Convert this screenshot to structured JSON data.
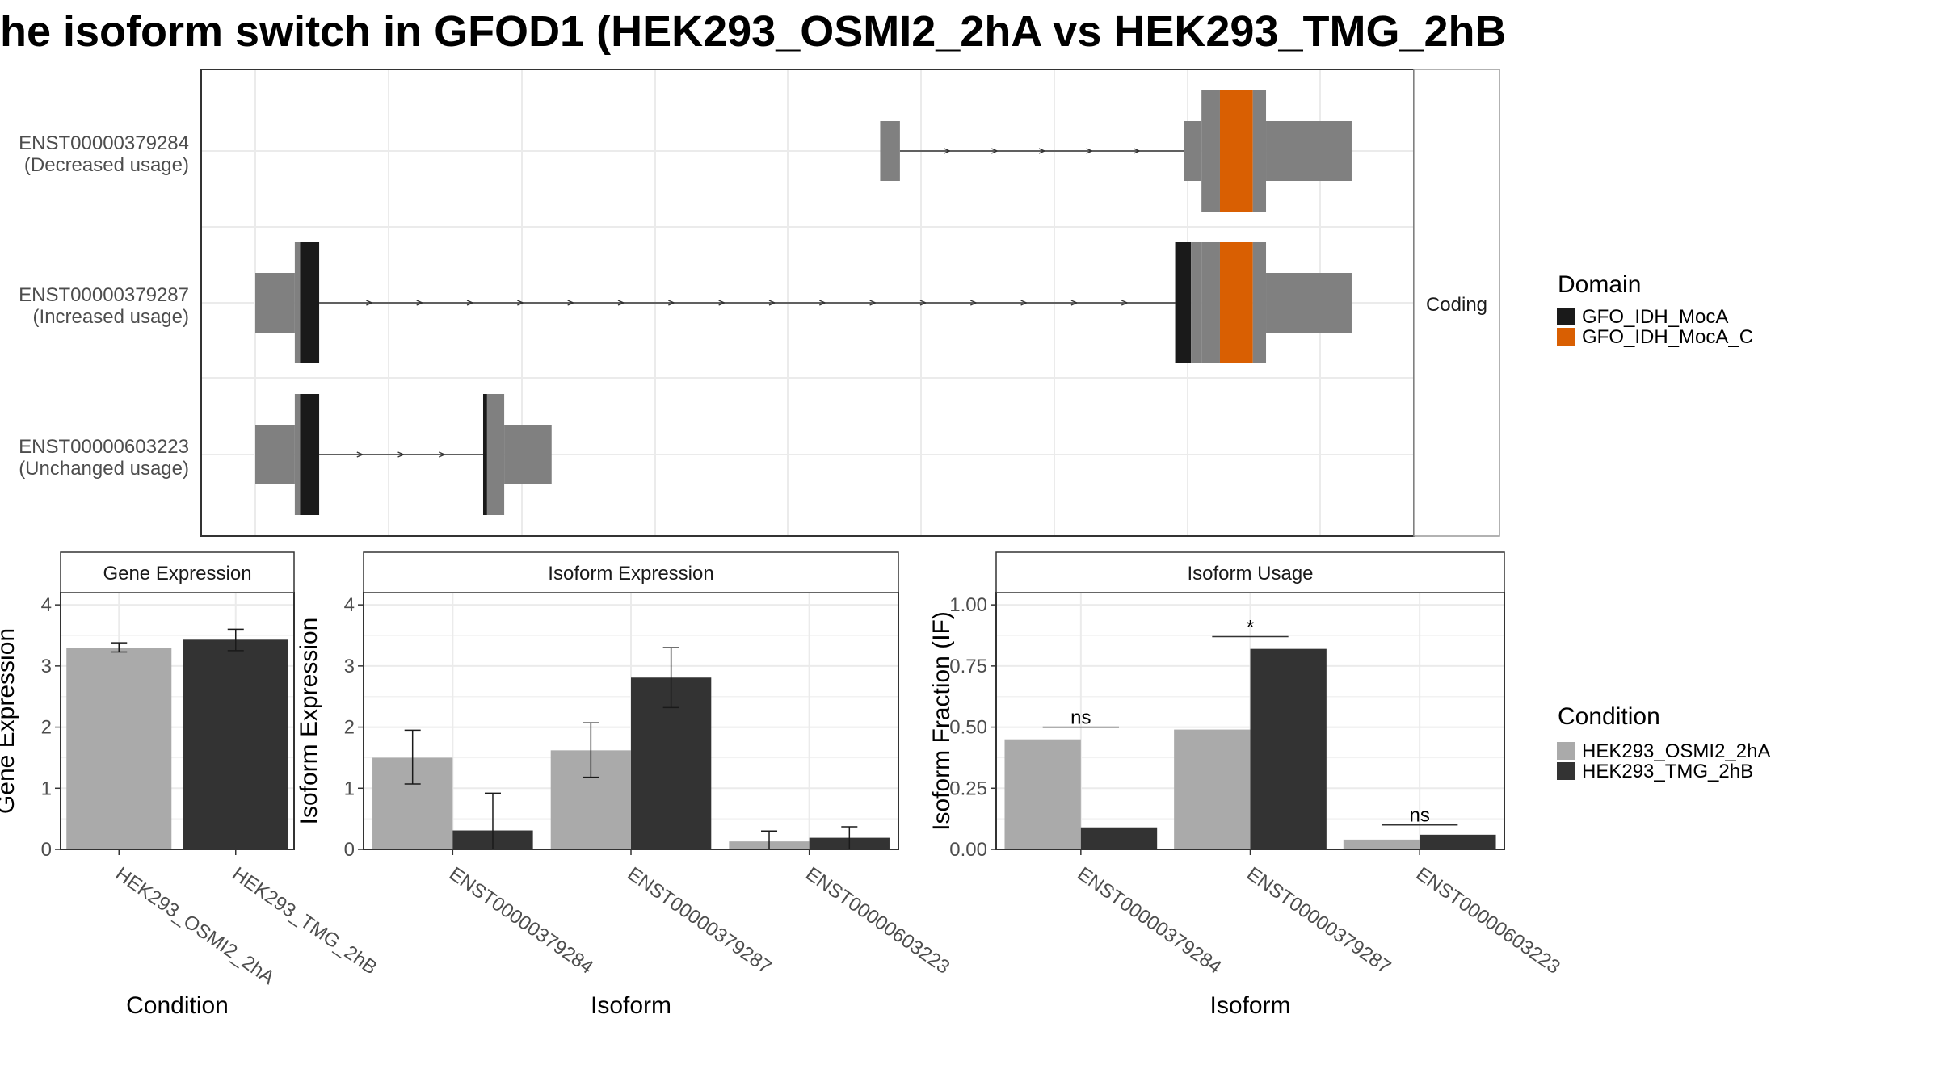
{
  "title": "he isoform switch in GFOD1 (HEK293_OSMI2_2hA vs HEK293_TMG_2hB",
  "colors": {
    "cond_a": "#aaaaaa",
    "cond_b": "#333333",
    "utr": "#808080",
    "domain_mocA": "#1a1a1a",
    "domain_mocA_C": "#d95f02"
  },
  "chart_data": [
    {
      "type": "other",
      "title": "",
      "strip_label": "Coding",
      "transcripts": [
        {
          "id": "ENST00000379284",
          "usage": "(Decreased usage)",
          "exons": [
            {
              "start": 0.4745,
              "end": 0.4895,
              "kind": "utr"
            },
            {
              "start": 0.7055,
              "end": 0.7185,
              "kind": "utr"
            },
            {
              "start": 0.7185,
              "end": 0.7325,
              "kind": "cds"
            },
            {
              "start": 0.7325,
              "end": 0.7575,
              "kind": "domain_mocA_C"
            },
            {
              "start": 0.7575,
              "end": 0.7675,
              "kind": "cds"
            },
            {
              "start": 0.7675,
              "end": 0.8325,
              "kind": "utr"
            }
          ],
          "intron": [
            0.4895,
            0.7055
          ]
        },
        {
          "id": "ENST00000379287",
          "usage": "(Increased usage)",
          "exons": [
            {
              "start": 0.0,
              "end": 0.03,
              "kind": "utr"
            },
            {
              "start": 0.03,
              "end": 0.034,
              "kind": "cds"
            },
            {
              "start": 0.034,
              "end": 0.0485,
              "kind": "domain_mocA"
            },
            {
              "start": 0.6985,
              "end": 0.7105,
              "kind": "domain_mocA"
            },
            {
              "start": 0.7105,
              "end": 0.7185,
              "kind": "cds"
            },
            {
              "start": 0.7185,
              "end": 0.7325,
              "kind": "cds"
            },
            {
              "start": 0.7325,
              "end": 0.7575,
              "kind": "domain_mocA_C"
            },
            {
              "start": 0.7575,
              "end": 0.7675,
              "kind": "cds"
            },
            {
              "start": 0.7675,
              "end": 0.8325,
              "kind": "utr"
            }
          ],
          "intron": [
            0.0485,
            0.6985
          ]
        },
        {
          "id": "ENST00000603223",
          "usage": "(Unchanged usage)",
          "exons": [
            {
              "start": 0.0,
              "end": 0.03,
              "kind": "utr"
            },
            {
              "start": 0.03,
              "end": 0.034,
              "kind": "cds"
            },
            {
              "start": 0.034,
              "end": 0.0485,
              "kind": "domain_mocA"
            },
            {
              "start": 0.173,
              "end": 0.176,
              "kind": "domain_mocA"
            },
            {
              "start": 0.176,
              "end": 0.189,
              "kind": "cds"
            },
            {
              "start": 0.189,
              "end": 0.225,
              "kind": "utr"
            }
          ],
          "intron": [
            0.0485,
            0.173
          ]
        }
      ],
      "legend": {
        "title": "Domain",
        "entries": [
          {
            "label": "GFO_IDH_MocA",
            "color": "#1a1a1a"
          },
          {
            "label": "GFO_IDH_MocA_C",
            "color": "#d95f02"
          }
        ]
      }
    },
    {
      "type": "bar",
      "title": "Gene Expression",
      "xlabel": "Condition",
      "ylabel": "Gene Expression",
      "ylim": [
        0,
        4.2
      ],
      "yticks": [
        0,
        1,
        2,
        3,
        4
      ],
      "ytick_labels": [
        "0",
        "1",
        "2",
        "3",
        "4"
      ],
      "categories": [
        "HEK293_OSMI2_2hA",
        "HEK293_TMG_2hB"
      ],
      "values": [
        3.3,
        3.43
      ],
      "errors": [
        [
          3.23,
          3.38
        ],
        [
          3.25,
          3.6
        ]
      ]
    },
    {
      "type": "bar",
      "title": "Isoform Expression",
      "xlabel": "Isoform",
      "ylabel": "Isoform Expression",
      "ylim": [
        0,
        4.2
      ],
      "yticks": [
        0,
        1,
        2,
        3,
        4
      ],
      "ytick_labels": [
        "0",
        "1",
        "2",
        "3",
        "4"
      ],
      "categories": [
        "ENST00000379284",
        "ENST00000379287",
        "ENST00000603223"
      ],
      "series": [
        {
          "name": "HEK293_OSMI2_2hA",
          "values": [
            1.5,
            1.62,
            0.13
          ],
          "errors": [
            [
              1.07,
              1.95
            ],
            [
              1.18,
              2.07
            ],
            [
              0.0,
              0.3
            ]
          ]
        },
        {
          "name": "HEK293_TMG_2hB",
          "values": [
            0.31,
            2.81,
            0.19
          ],
          "errors": [
            [
              0.0,
              0.92
            ],
            [
              2.32,
              3.3
            ],
            [
              0.0,
              0.37
            ]
          ]
        }
      ]
    },
    {
      "type": "bar",
      "title": "Isoform Usage",
      "xlabel": "Isoform",
      "ylabel": "Isoform Fraction (IF)",
      "ylim": [
        0,
        1.05
      ],
      "yticks": [
        0,
        0.25,
        0.5,
        0.75,
        1.0
      ],
      "ytick_labels": [
        "0.00",
        "0.25",
        "0.50",
        "0.75",
        "1.00"
      ],
      "categories": [
        "ENST00000379284",
        "ENST00000379287",
        "ENST00000603223"
      ],
      "series": [
        {
          "name": "HEK293_OSMI2_2hA",
          "values": [
            0.45,
            0.49,
            0.04
          ]
        },
        {
          "name": "HEK293_TMG_2hB",
          "values": [
            0.09,
            0.82,
            0.06
          ]
        }
      ],
      "annotations": [
        {
          "category_index": 0,
          "label": "ns",
          "y": 0.5
        },
        {
          "category_index": 1,
          "label": "*",
          "y": 0.87
        },
        {
          "category_index": 2,
          "label": "ns",
          "y": 0.1
        }
      ]
    }
  ],
  "condition_legend": {
    "title": "Condition",
    "entries": [
      {
        "label": "HEK293_OSMI2_2hA",
        "color": "#aaaaaa"
      },
      {
        "label": "HEK293_TMG_2hB",
        "color": "#333333"
      }
    ]
  }
}
